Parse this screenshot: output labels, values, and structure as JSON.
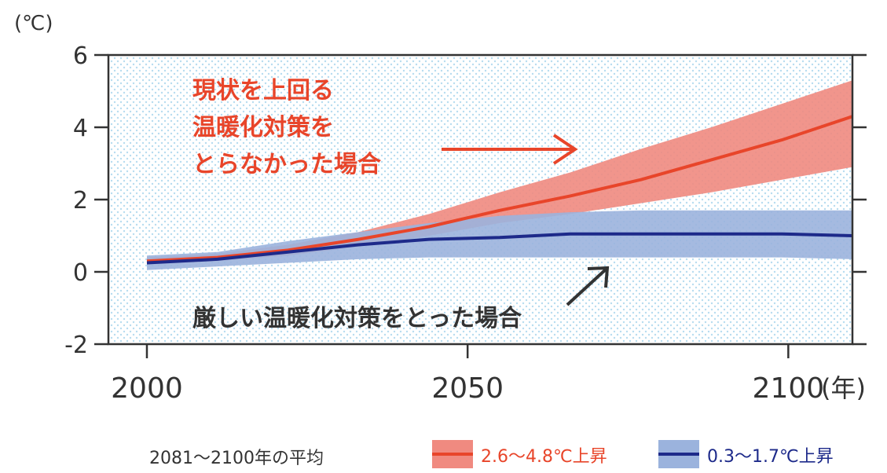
{
  "chart_data": {
    "type": "line",
    "y_unit": "(℃)",
    "x_unit": "(年)",
    "annotations": [
      [
        "現状を上回る",
        "温暖化対策を",
        "とらなかった場合"
      ],
      [
        "厳しい温暖化対策をとった場合"
      ]
    ],
    "legend_title": "2081～2100年の平均",
    "x": [
      2000,
      2011,
      2022,
      2033,
      2044,
      2055,
      2066,
      2077,
      2088,
      2099,
      2110
    ],
    "series": [
      {
        "name": "2.6～4.8℃上昇",
        "color": "#e8452a",
        "band_color": "#f08a80",
        "values": [
          0.3,
          0.4,
          0.6,
          0.9,
          1.25,
          1.7,
          2.1,
          2.55,
          3.1,
          3.65,
          4.3
        ],
        "upper": [
          0.4,
          0.5,
          0.75,
          1.1,
          1.6,
          2.2,
          2.75,
          3.4,
          4.0,
          4.65,
          5.3
        ],
        "lower": [
          0.2,
          0.3,
          0.45,
          0.7,
          1.0,
          1.35,
          1.6,
          1.9,
          2.2,
          2.55,
          2.9
        ]
      },
      {
        "name": "0.3～1.7℃上昇",
        "color": "#1d2a8a",
        "band_color": "#9bb3dd",
        "values": [
          0.25,
          0.35,
          0.55,
          0.75,
          0.9,
          0.95,
          1.05,
          1.05,
          1.05,
          1.05,
          1.0
        ],
        "upper": [
          0.45,
          0.55,
          0.85,
          1.1,
          1.35,
          1.55,
          1.65,
          1.7,
          1.7,
          1.7,
          1.7
        ],
        "lower": [
          0.05,
          0.15,
          0.25,
          0.35,
          0.4,
          0.4,
          0.4,
          0.4,
          0.4,
          0.4,
          0.35
        ]
      }
    ],
    "xlim": [
      1994,
      2110
    ],
    "xticks": [
      2000,
      2050,
      2100
    ],
    "ylim": [
      -2,
      6
    ],
    "yticks": [
      -2,
      0,
      2,
      4,
      6
    ]
  }
}
